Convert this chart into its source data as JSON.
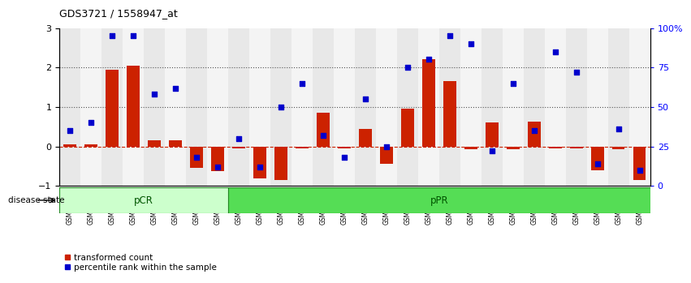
{
  "title": "GDS3721 / 1558947_at",
  "samples": [
    "GSM559062",
    "GSM559063",
    "GSM559064",
    "GSM559065",
    "GSM559066",
    "GSM559067",
    "GSM559068",
    "GSM559069",
    "GSM559042",
    "GSM559043",
    "GSM559044",
    "GSM559045",
    "GSM559046",
    "GSM559047",
    "GSM559048",
    "GSM559049",
    "GSM559050",
    "GSM559051",
    "GSM559052",
    "GSM559053",
    "GSM559054",
    "GSM559055",
    "GSM559056",
    "GSM559057",
    "GSM559058",
    "GSM559059",
    "GSM559060",
    "GSM559061"
  ],
  "transformed_count": [
    0.05,
    0.05,
    1.95,
    2.05,
    0.15,
    0.15,
    -0.55,
    -0.62,
    -0.05,
    -0.8,
    -0.85,
    -0.05,
    0.85,
    -0.05,
    0.45,
    -0.45,
    0.95,
    2.2,
    1.65,
    -0.08,
    0.6,
    -0.08,
    0.62,
    -0.05,
    -0.05,
    -0.6,
    -0.08,
    -0.85
  ],
  "percentile_rank": [
    35,
    40,
    95,
    95,
    58,
    62,
    18,
    12,
    30,
    12,
    50,
    65,
    32,
    18,
    55,
    25,
    75,
    80,
    95,
    90,
    22,
    65,
    35,
    85,
    72,
    14,
    36,
    10
  ],
  "pcr_count": 8,
  "ppr_count": 20,
  "pcr_color": "#ccffcc",
  "ppr_color": "#55dd55",
  "pcr_label": "pCR",
  "ppr_label": "pPR",
  "bar_color": "#cc2200",
  "dot_color": "#0000cc",
  "hline_color": "#cc2200",
  "dotted_line_color": "#555555",
  "ylim": [
    -1,
    3
  ],
  "yticks": [
    -1,
    0,
    1,
    2,
    3
  ],
  "yticks_right": [
    0,
    25,
    50,
    75,
    100
  ],
  "ytick_right_labels": [
    "0",
    "25",
    "50",
    "75",
    "100%"
  ],
  "dotted_lines": [
    1.0,
    2.0
  ],
  "bg_color_even": "#e8e8e8",
  "bg_color_odd": "#f4f4f4"
}
